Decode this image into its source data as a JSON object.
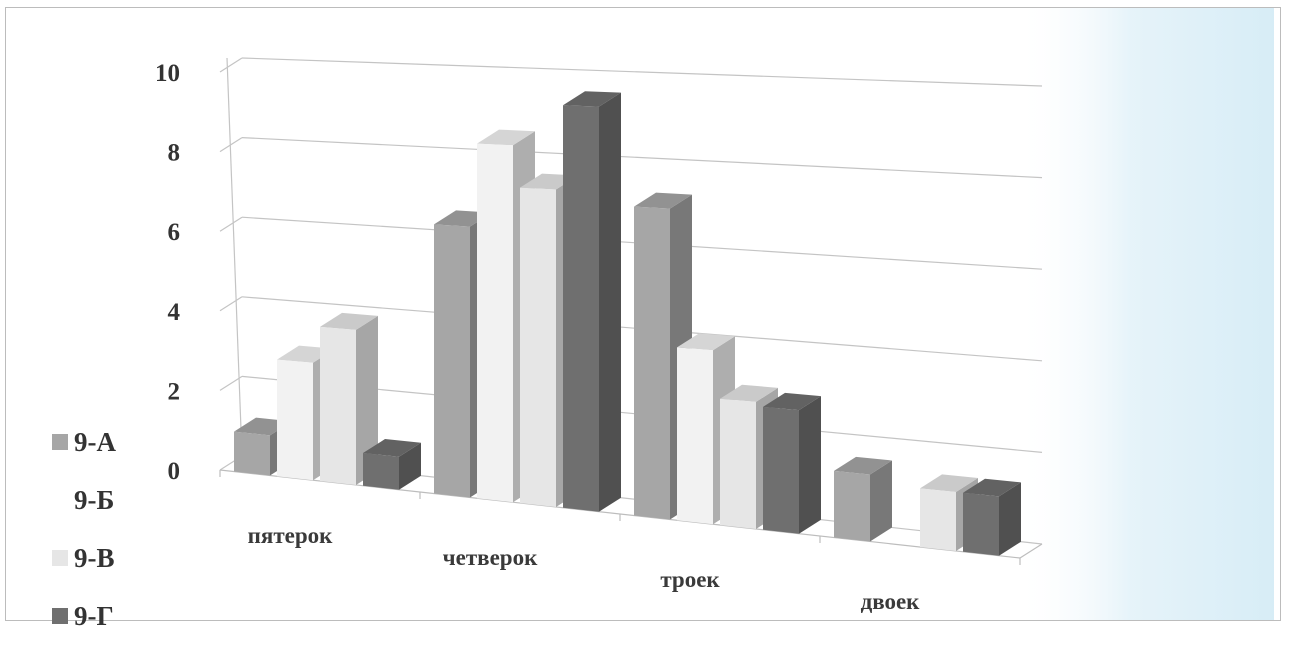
{
  "chart_data": {
    "type": "bar",
    "categories": [
      "пятерок",
      "четверок",
      "троек",
      "двоек"
    ],
    "series": [
      {
        "name": "9-А",
        "values": [
          1,
          6.5,
          7.2,
          1.5
        ],
        "color": "#a6a6a6"
      },
      {
        "name": "9-Б",
        "values": [
          2.9,
          8.5,
          4,
          0
        ],
        "color": "#f2f2f2"
      },
      {
        "name": "9-В",
        "values": [
          3.8,
          7.5,
          2.9,
          1.3
        ],
        "color": "#e6e6e6"
      },
      {
        "name": "9-Г",
        "values": [
          0.8,
          9.5,
          2.8,
          1.3
        ],
        "color": "#6f6f6f"
      }
    ],
    "yticks": [
      "0",
      "2",
      "4",
      "6",
      "8",
      "10"
    ],
    "ylim": [
      0,
      10
    ],
    "grid": true,
    "legend": "left",
    "projection": "3d"
  }
}
